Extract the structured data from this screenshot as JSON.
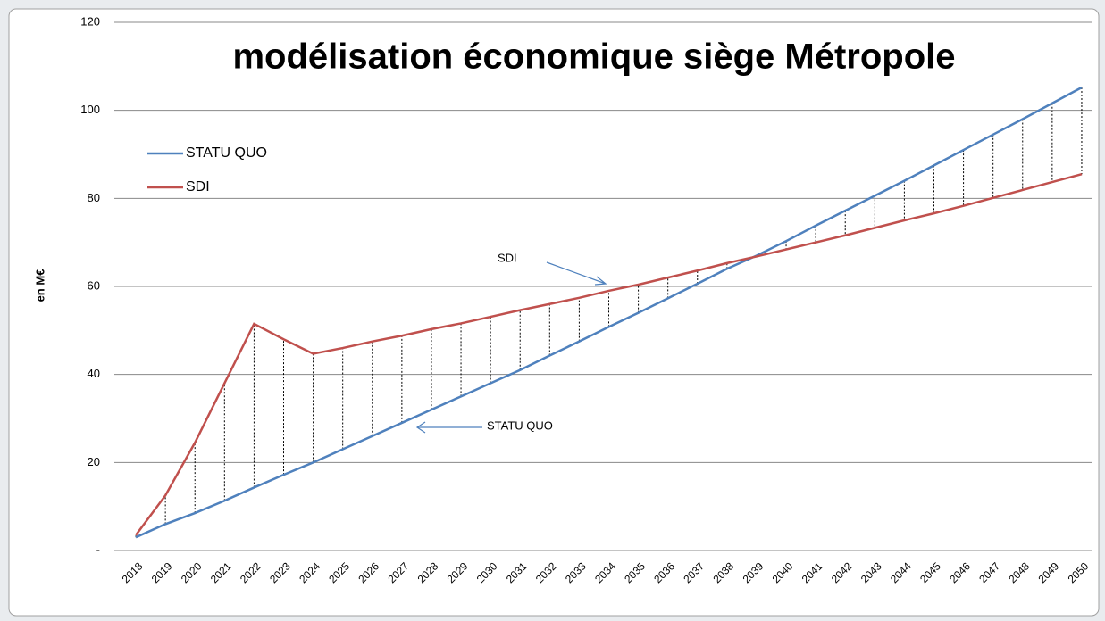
{
  "chart_data": {
    "type": "line",
    "title": "modélisation économique siège Métropole",
    "y_label": "en M€",
    "categories": [
      "2018",
      "2019",
      "2020",
      "2021",
      "2022",
      "2023",
      "2024",
      "2025",
      "2026",
      "2027",
      "2028",
      "2029",
      "2030",
      "2031",
      "2032",
      "2033",
      "2034",
      "2035",
      "2036",
      "2037",
      "2038",
      "2039",
      "2040",
      "2041",
      "2042",
      "2043",
      "2044",
      "2045",
      "2046",
      "2047",
      "2048",
      "2049",
      "2050"
    ],
    "series": [
      {
        "name": "STATU QUO",
        "color": "#4f81bd",
        "values": [
          3,
          6,
          8.5,
          11.3,
          14.3,
          17.2,
          20,
          23,
          26,
          29,
          32,
          35,
          38,
          41,
          44.3,
          47.5,
          50.8,
          54,
          57.3,
          60.6,
          64,
          67,
          70.3,
          73.8,
          77.2,
          80.6,
          84,
          87.5,
          91,
          94.5,
          98,
          101.6,
          105.2
        ]
      },
      {
        "name": "SDI",
        "color": "#c0504d",
        "values": [
          3.5,
          12.5,
          24.5,
          38,
          51.5,
          48,
          44.7,
          46,
          47.5,
          48.8,
          50.3,
          51.6,
          53.1,
          54.6,
          56,
          57.4,
          59,
          60.4,
          62,
          63.6,
          65.3,
          66.8,
          68.4,
          70,
          71.6,
          73.3,
          75,
          76.6,
          78.3,
          80.1,
          81.9,
          83.7,
          85.5
        ]
      }
    ],
    "annotations": [
      {
        "text": "SDI"
      },
      {
        "text": "STATU QUO"
      }
    ],
    "ylim": [
      0,
      120
    ],
    "yticks": [
      {
        "value": 0,
        "label": "-"
      },
      20,
      40,
      60,
      80,
      100,
      120
    ],
    "grid": true,
    "drop_lines": true,
    "legend": "upper left"
  }
}
